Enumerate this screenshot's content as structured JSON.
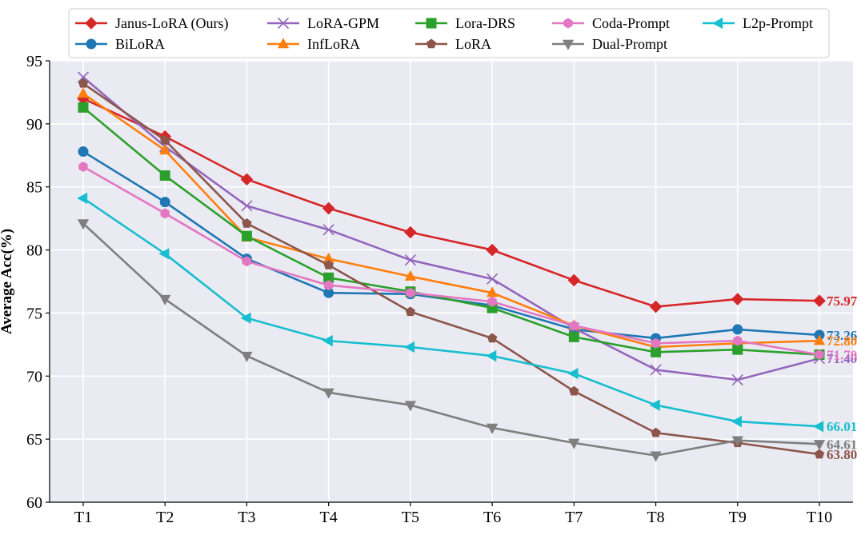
{
  "chart_data": {
    "type": "line",
    "ylabel": "Average Acc(%)",
    "xlabel": "",
    "title": "",
    "categories": [
      "T1",
      "T2",
      "T3",
      "T4",
      "T5",
      "T6",
      "T7",
      "T8",
      "T9",
      "T10"
    ],
    "ylim": [
      60,
      95
    ],
    "yticks": [
      60,
      65,
      70,
      75,
      80,
      85,
      90,
      95
    ],
    "grid": true,
    "legend_position": "top",
    "series": [
      {
        "name": "Janus-LoRA (Ours)",
        "color": "#d62728",
        "marker": "diamond",
        "values": [
          92.0,
          89.0,
          85.6,
          83.3,
          81.4,
          80.0,
          77.6,
          75.5,
          76.1,
          75.97
        ],
        "end_label": "75.97"
      },
      {
        "name": "BiLoRA",
        "color": "#1f77b4",
        "marker": "circle",
        "values": [
          87.8,
          83.8,
          79.3,
          76.6,
          76.5,
          75.6,
          73.7,
          73.0,
          73.7,
          73.26
        ],
        "end_label": "73.26"
      },
      {
        "name": "LoRA-GPM",
        "color": "#9467bd",
        "marker": "x",
        "values": [
          93.7,
          88.2,
          83.5,
          81.6,
          79.2,
          77.7,
          73.8,
          70.5,
          69.7,
          71.4
        ],
        "end_label": "71.40"
      },
      {
        "name": "InfLoRA",
        "color": "#ff7f0e",
        "marker": "triangle-up",
        "values": [
          92.4,
          87.9,
          81.0,
          79.3,
          77.9,
          76.6,
          74.0,
          72.3,
          72.6,
          72.8
        ],
        "end_label": "72.80"
      },
      {
        "name": "Lora-DRS",
        "color": "#2ca02c",
        "marker": "square",
        "values": [
          91.3,
          85.9,
          81.1,
          77.8,
          76.7,
          75.4,
          73.1,
          71.9,
          72.1,
          71.7
        ],
        "end_label": ""
      },
      {
        "name": "LoRA",
        "color": "#8c564b",
        "marker": "pentagon",
        "values": [
          93.2,
          88.7,
          82.1,
          78.8,
          75.1,
          73.0,
          68.8,
          65.5,
          64.7,
          63.8
        ],
        "end_label": "63.80"
      },
      {
        "name": "Coda-Prompt",
        "color": "#e377c2",
        "marker": "hexagon",
        "values": [
          86.6,
          82.9,
          79.1,
          77.2,
          76.6,
          75.9,
          74.0,
          72.6,
          72.8,
          71.7
        ],
        "end_label": "71.70"
      },
      {
        "name": "Dual-Prompt",
        "color": "#7f7f7f",
        "marker": "triangle-down",
        "values": [
          82.1,
          76.1,
          71.6,
          68.7,
          67.7,
          65.9,
          64.7,
          63.7,
          64.9,
          64.61
        ],
        "end_label": "64.61"
      },
      {
        "name": "L2p-Prompt",
        "color": "#17becf",
        "marker": "triangle-left",
        "values": [
          84.1,
          79.7,
          74.6,
          72.8,
          72.3,
          71.6,
          70.2,
          67.7,
          66.4,
          66.01
        ],
        "end_label": "66.01"
      }
    ]
  }
}
